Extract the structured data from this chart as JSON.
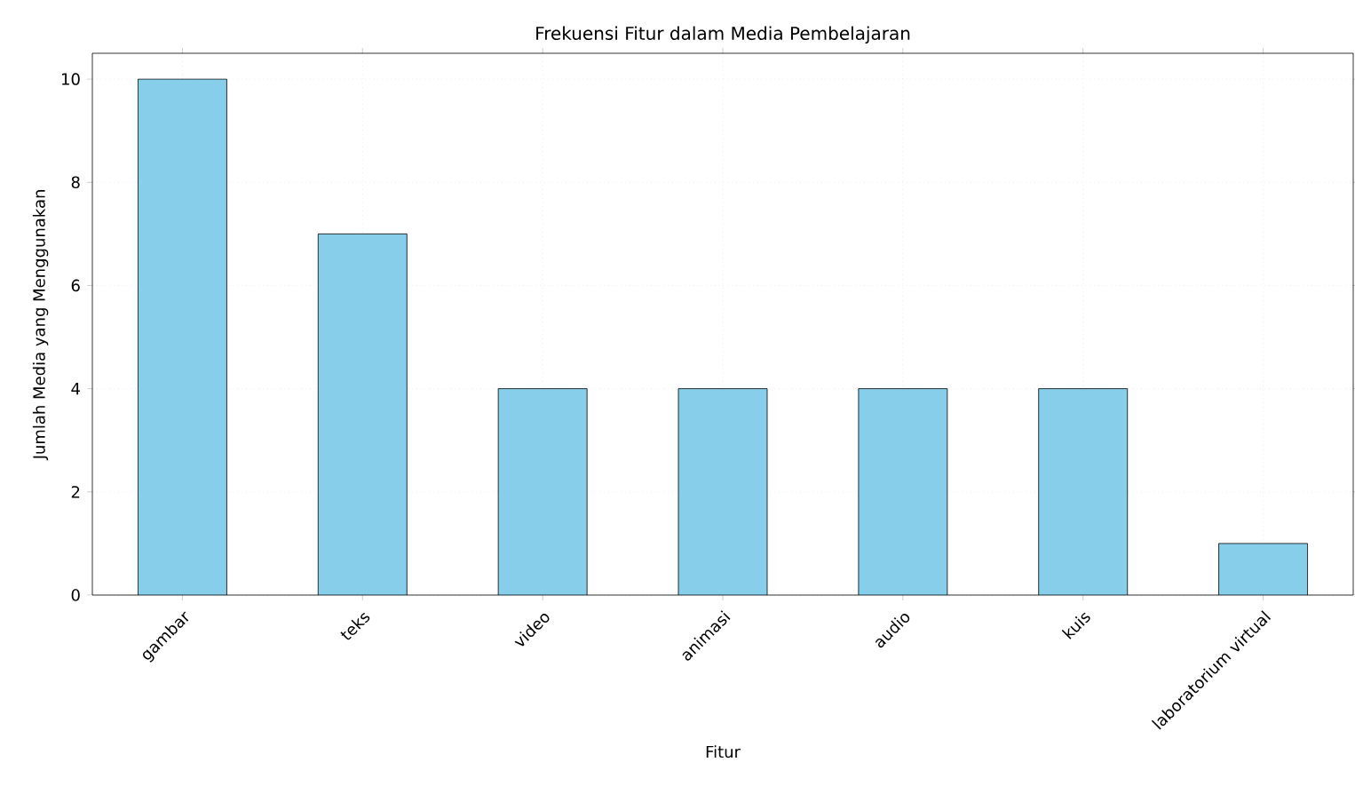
{
  "chart_data": {
    "type": "bar",
    "title": "Frekuensi Fitur dalam Media Pembelajaran",
    "xlabel": "Fitur",
    "ylabel": "Jumlah Media yang Menggunakan",
    "categories": [
      "gambar",
      "teks",
      "video",
      "animasi",
      "audio",
      "kuis",
      "laboratorium virtual"
    ],
    "values": [
      10,
      7,
      4,
      4,
      4,
      4,
      1
    ],
    "color": "#87ceeb",
    "ylim": [
      0,
      10.5
    ],
    "yticks": [
      0,
      2,
      4,
      6,
      8,
      10
    ],
    "grid": true
  }
}
